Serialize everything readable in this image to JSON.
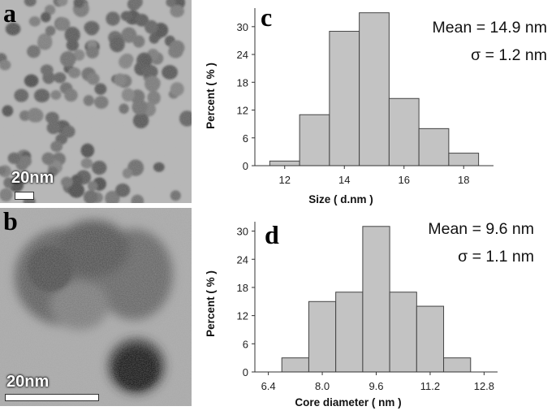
{
  "panels": {
    "a": {
      "letter": "a",
      "scale_label": "20nm"
    },
    "b": {
      "letter": "b",
      "scale_label": "20nm"
    }
  },
  "colors": {
    "bar_fill": "#c3c3c3",
    "bar_stroke": "#444444",
    "tem_bg": "#b4b4b4"
  },
  "chart_data": [
    {
      "type": "bar",
      "panel_letter": "c",
      "xlabel": "Size ( d.nm )",
      "ylabel": "Percent ( % )",
      "stats": [
        "Mean = 14.9 nm",
        "σ =   1.2 nm"
      ],
      "bin_edges": [
        11.5,
        12.5,
        13.5,
        14.5,
        15.5,
        16.5,
        17.5,
        18.5
      ],
      "values": [
        1,
        11,
        29,
        33,
        14.5,
        8,
        2.7
      ],
      "x_ticks": [
        12,
        14,
        16,
        18
      ],
      "y_ticks": [
        0,
        6,
        12,
        18,
        24,
        30
      ],
      "xlim": [
        11.0,
        19.0
      ],
      "ylim": [
        0,
        34
      ]
    },
    {
      "type": "bar",
      "panel_letter": "d",
      "xlabel": "Core diameter ( nm )",
      "ylabel": "Percent ( % )",
      "stats": [
        "Mean = 9.6 nm",
        "σ = 1.1 nm"
      ],
      "bin_edges": [
        6.8,
        7.6,
        8.4,
        9.2,
        10.0,
        10.8,
        11.6,
        12.4
      ],
      "values": [
        3,
        15,
        17,
        31,
        17,
        14,
        3
      ],
      "x_ticks": [
        "6.4",
        "8.0",
        "9.6",
        "11.2",
        "12.8"
      ],
      "y_ticks": [
        0,
        6,
        12,
        18,
        24,
        30
      ],
      "xlim": [
        6.0,
        13.2
      ],
      "ylim": [
        0,
        32
      ]
    }
  ]
}
